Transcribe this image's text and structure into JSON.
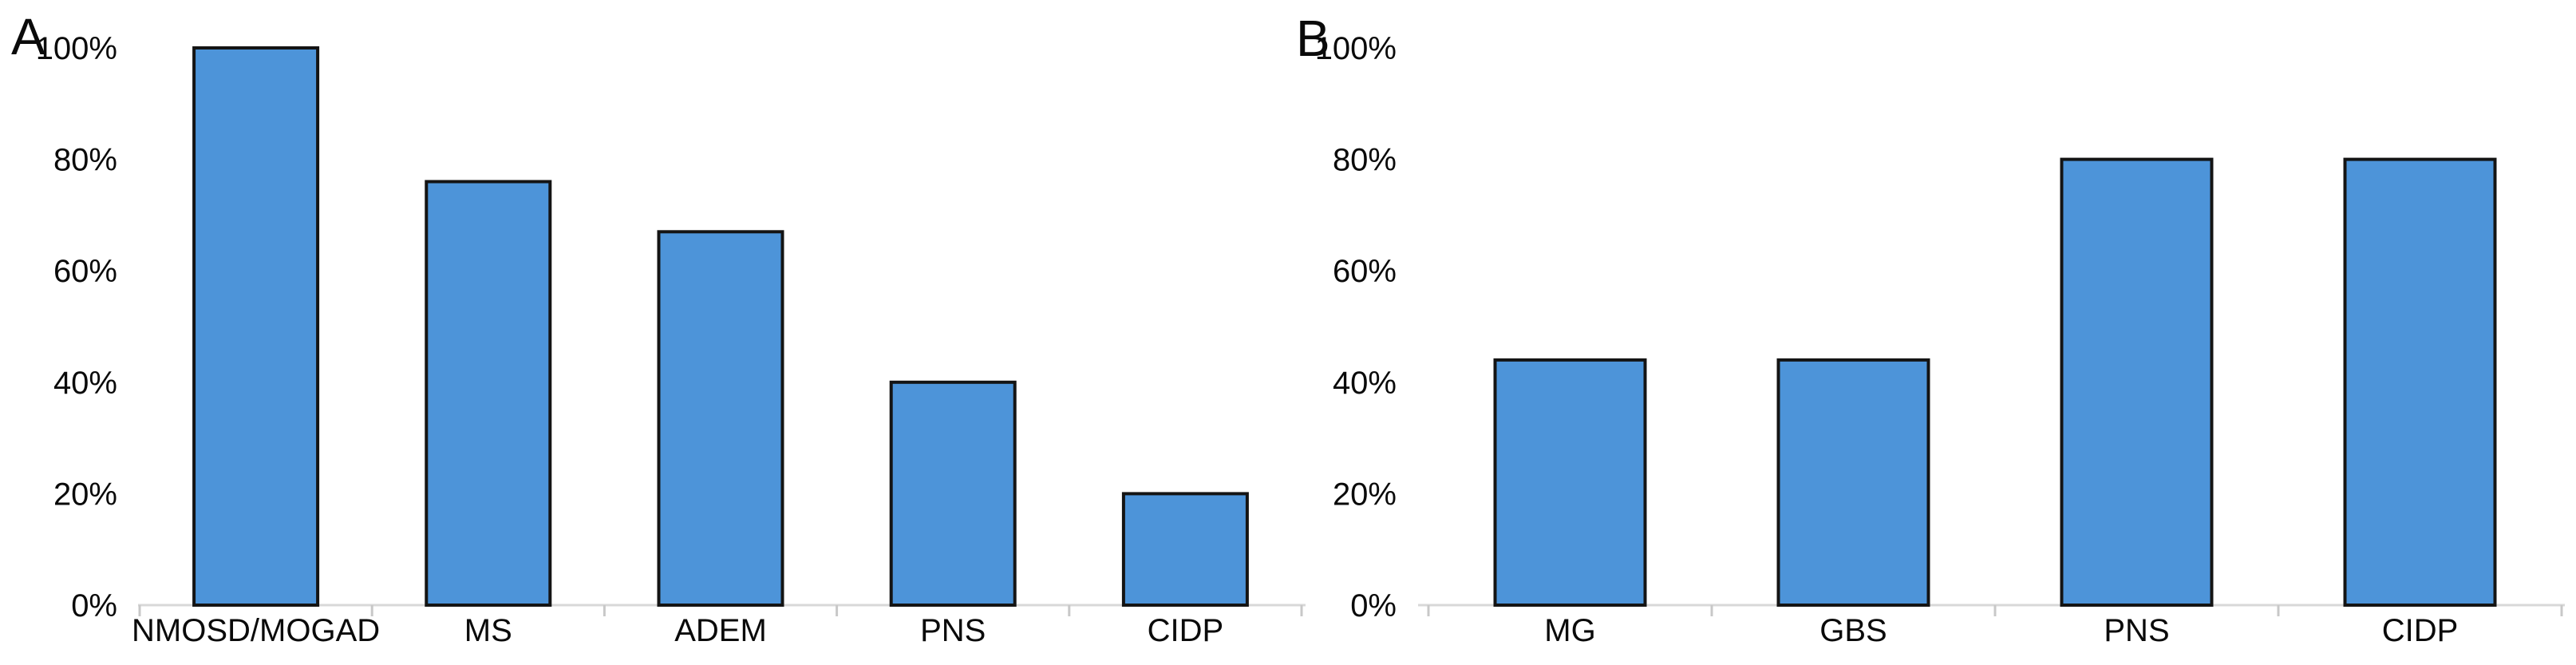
{
  "figure": {
    "background_color": "#ffffff",
    "panel_count": 2
  },
  "colors": {
    "bar_fill": "#4D94D9",
    "bar_border": "#141414",
    "axis_line": "#D8D8D8",
    "tick_mark": "#C8C8C8",
    "text": "#0a0a0a"
  },
  "chart_data": [
    {
      "type": "bar",
      "panel_label": "A",
      "title": "",
      "xlabel": "",
      "ylabel": "",
      "categories": [
        "NMOSD/MOGAD",
        "MS",
        "ADEM",
        "PNS",
        "CIDP"
      ],
      "values": [
        100,
        76,
        67,
        40,
        20
      ],
      "value_unit": "%",
      "ylim": [
        0,
        100
      ],
      "y_tick_labels": [
        "0%",
        "20%",
        "40%",
        "60%",
        "80%",
        "100%"
      ],
      "grid": false,
      "legend": false,
      "bar_color": "#4D94D9",
      "bar_border_color": "#141414"
    },
    {
      "type": "bar",
      "panel_label": "B",
      "title": "",
      "xlabel": "",
      "ylabel": "",
      "categories": [
        "MG",
        "GBS",
        "PNS",
        "CIDP"
      ],
      "values": [
        44,
        44,
        80,
        80
      ],
      "value_unit": "%",
      "ylim": [
        0,
        100
      ],
      "y_tick_labels": [
        "0%",
        "20%",
        "40%",
        "60%",
        "80%",
        "100%"
      ],
      "grid": false,
      "legend": false,
      "bar_color": "#4D94D9",
      "bar_border_color": "#141414"
    }
  ]
}
